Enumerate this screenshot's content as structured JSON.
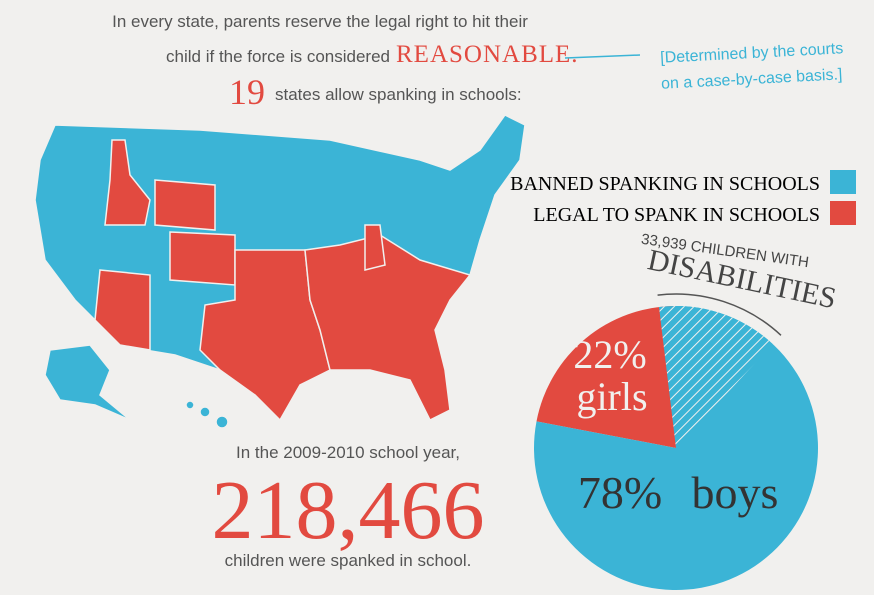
{
  "intro": {
    "line1": "In every state, parents reserve the legal right to hit their",
    "line2": "child if the force is considered",
    "emphasis": "REASONABLE."
  },
  "annotation": {
    "line1": "[Determined by the courts",
    "line2": "on a case-by-case basis.]"
  },
  "states": {
    "count": "19",
    "text": "states allow spanking in schools:"
  },
  "legend": {
    "banned": "BANNED SPANKING IN SCHOOLS",
    "legal": "LEGAL TO SPANK IN SCHOOLS",
    "banned_color": "#3bb4d6",
    "legal_color": "#e24a40"
  },
  "pie": {
    "disabilities_count": "33,939 CHILDREN WITH",
    "disabilities_label": "DISABILITIES",
    "names": [
      "girls",
      "boys"
    ],
    "values": [
      22,
      78
    ],
    "value_labels": [
      "22%",
      "78%"
    ],
    "colors": [
      "#e24a40",
      "#3bb4d6"
    ]
  },
  "footer": {
    "line1": "In the 2009-2010 school year,",
    "number": "218,466",
    "line2": "children were spanked in school."
  }
}
